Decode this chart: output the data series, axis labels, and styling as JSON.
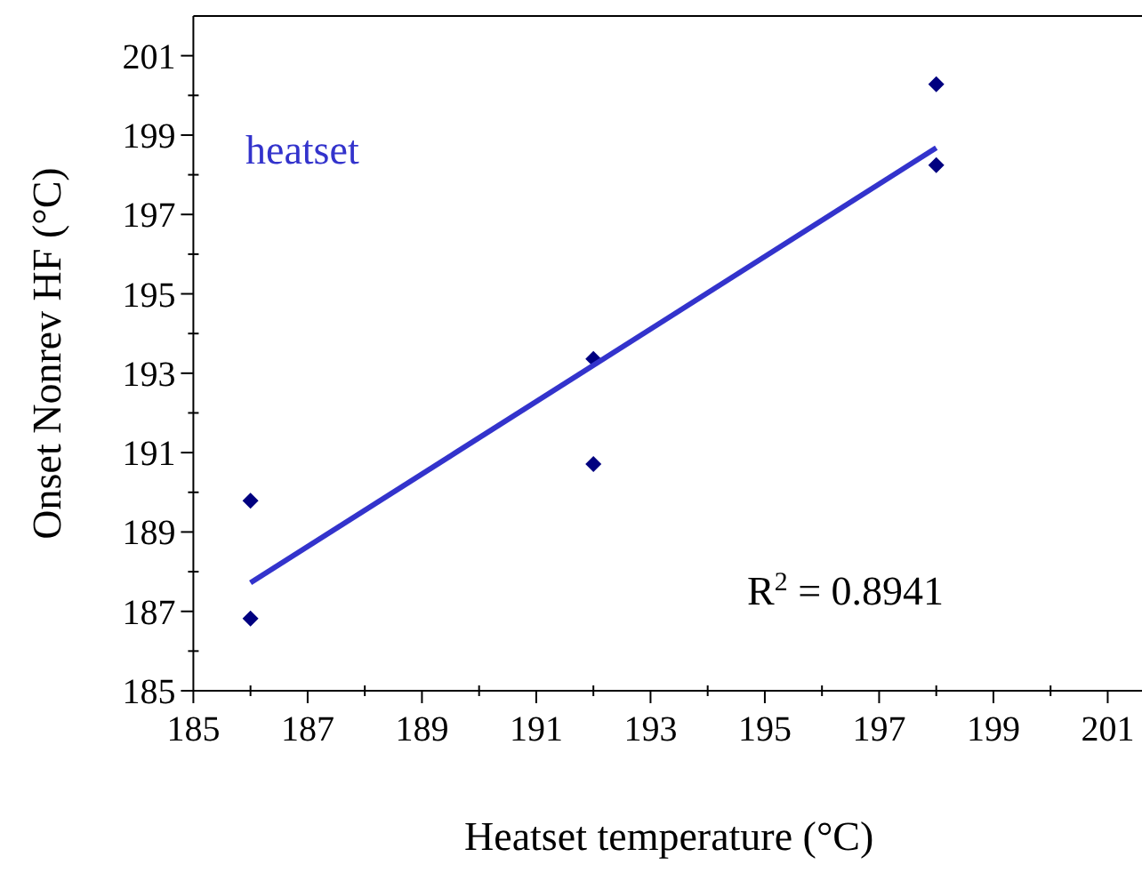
{
  "chart_data": {
    "type": "scatter",
    "xlabel": "Heatset temperature (°C)",
    "ylabel": "Onset Nonrev HF (°C)",
    "xlim": [
      185,
      201.6
    ],
    "ylim": [
      185,
      202
    ],
    "xticks": [
      185,
      {
        "value": 186,
        "label": null
      },
      187,
      {
        "value": 188,
        "label": null
      },
      189,
      {
        "value": 190,
        "label": null
      },
      191,
      {
        "value": 192,
        "label": null
      },
      193,
      {
        "value": 194,
        "label": null
      },
      195,
      {
        "value": 196,
        "label": null
      },
      197,
      {
        "value": 198,
        "label": null
      },
      199,
      {
        "value": 200,
        "label": null
      },
      201
    ],
    "yticks": [
      185,
      {
        "value": 186,
        "label": null
      },
      187,
      {
        "value": 188,
        "label": null
      },
      189,
      {
        "value": 190,
        "label": null
      },
      191,
      {
        "value": 192,
        "label": null
      },
      193,
      {
        "value": 194,
        "label": null
      },
      195,
      {
        "value": 196,
        "label": null
      },
      197,
      {
        "value": 198,
        "label": null
      },
      199,
      {
        "value": 200,
        "label": null
      },
      201
    ],
    "grid": false,
    "marker": "diamond",
    "series": [
      {
        "color": "#000080",
        "x": [
          186,
          186,
          192,
          192,
          198,
          198
        ],
        "values": [
          189.79,
          186.82,
          193.36,
          190.71,
          200.28,
          198.24
        ]
      },
      {
        "type": "line",
        "color": "#3333cc",
        "line_style": "solid",
        "marker": "none",
        "x": [
          186,
          198
        ],
        "values": [
          187.72,
          198.68
        ]
      }
    ],
    "annotations": [
      "heatset",
      "R$^{2}$ = 0.8941"
    ]
  }
}
